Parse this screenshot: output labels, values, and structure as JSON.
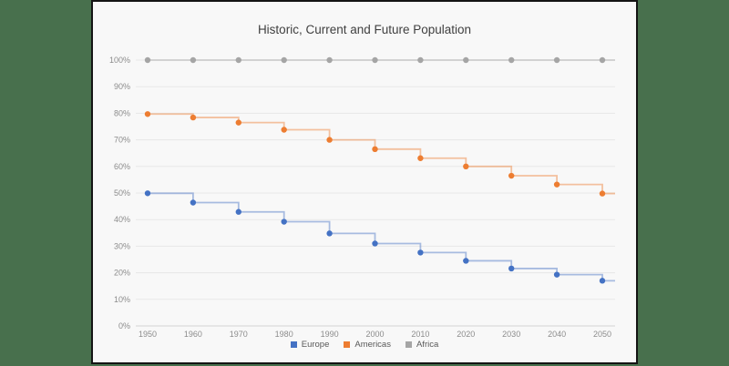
{
  "window": {
    "background_color": "#48704D",
    "panel_color": "#f8f8f8",
    "panel_border_color": "#141414"
  },
  "chart_data": {
    "type": "line",
    "line_style": "step-after",
    "title": "Historic, Current and Future Population",
    "categories": [
      "1950",
      "1960",
      "1970",
      "1980",
      "1990",
      "2000",
      "2010",
      "2020",
      "2030",
      "2040",
      "2050"
    ],
    "series": [
      {
        "name": "Europe",
        "color": "#4472C4",
        "values": [
          49.9,
          46.4,
          42.9,
          39.2,
          34.8,
          31.0,
          27.6,
          24.5,
          21.6,
          19.3,
          17.0
        ]
      },
      {
        "name": "Americas",
        "color": "#ED7D31",
        "values": [
          79.7,
          78.4,
          76.5,
          73.8,
          70.0,
          66.5,
          63.1,
          60.0,
          56.5,
          53.2,
          49.8
        ]
      },
      {
        "name": "Africa",
        "color": "#A5A5A5",
        "values": [
          100,
          100,
          100,
          100,
          100,
          100,
          100,
          100,
          100,
          100,
          100
        ]
      }
    ],
    "xlabel": "",
    "ylabel": "",
    "ylim": [
      0,
      100
    ],
    "y_tick_labels": [
      "0%",
      "10%",
      "20%",
      "30%",
      "40%",
      "50%",
      "60%",
      "70%",
      "80%",
      "90%",
      "100%"
    ],
    "grid": true,
    "gridline_color": "#e7e7e7",
    "axis_line_color": "#d4d4d4",
    "tick_label_color": "#8c8c8c",
    "line_opacity": 0.45,
    "legend_position": "bottom",
    "legend": [
      "Europe",
      "Americas",
      "Africa"
    ]
  }
}
